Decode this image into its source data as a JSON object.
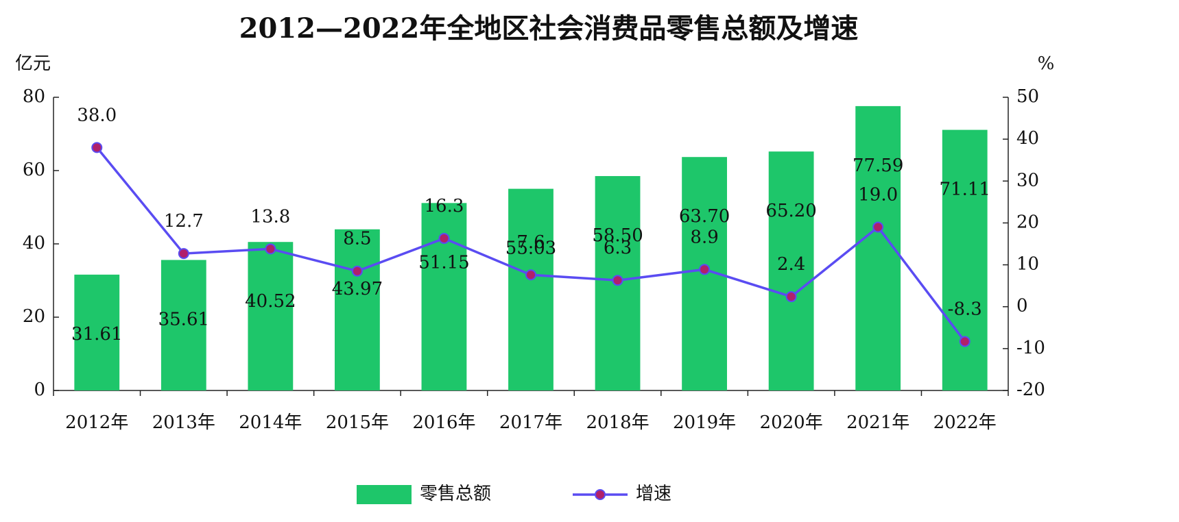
{
  "chart_data": {
    "type": "bar",
    "title": "2012—2022年全地区社会消费品零售总额及增速",
    "y_label": "亿元",
    "y2_label": "%",
    "categories": [
      "2012年",
      "2013年",
      "2014年",
      "2015年",
      "2016年",
      "2017年",
      "2018年",
      "2019年",
      "2020年",
      "2021年",
      "2022年"
    ],
    "series": [
      {
        "name": "零售总额",
        "color": "#1ec66a",
        "values": [
          31.61,
          35.61,
          40.52,
          43.97,
          51.15,
          55.03,
          58.5,
          63.7,
          65.2,
          77.59,
          71.11
        ],
        "value_labels": [
          "31.61",
          "35.61",
          "40.52",
          "43.97",
          "51.15",
          "55.03",
          "58.50",
          "63.70",
          "65.20",
          "77.59",
          "71.11"
        ]
      },
      {
        "name": "增速",
        "type": "line",
        "axis": "y2",
        "color": "#5a4cf2",
        "marker_color": "#b0206a",
        "values": [
          38.0,
          12.7,
          13.8,
          8.5,
          16.3,
          7.6,
          6.3,
          8.9,
          2.4,
          19.0,
          -8.3
        ],
        "value_labels": [
          "38.0",
          "12.7",
          "13.8",
          "8.5",
          "16.3",
          "7.6",
          "6.3",
          "8.9",
          "2.4",
          "19.0",
          "-8.3"
        ]
      }
    ],
    "ylim": [
      0,
      80
    ],
    "yticks": [
      0,
      20,
      40,
      60,
      80
    ],
    "y2lim": [
      -20,
      50
    ],
    "y2ticks": [
      -20,
      -10,
      0,
      10,
      20,
      30,
      40,
      50
    ]
  }
}
